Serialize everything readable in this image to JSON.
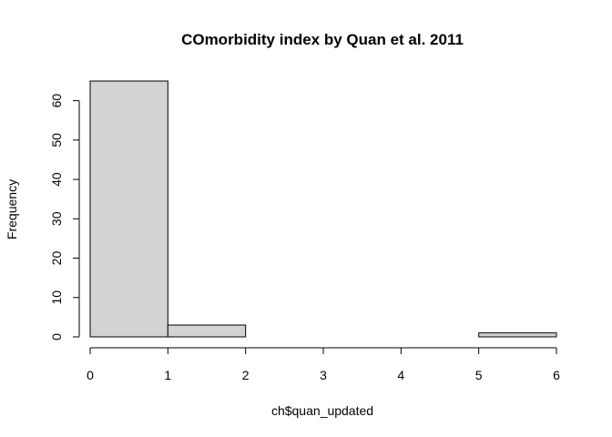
{
  "chart_data": {
    "type": "bar",
    "title": "COmorbidity index by Quan et al. 2011",
    "xlabel": "ch$quan_updated",
    "ylabel": "Frequency",
    "bins": [
      {
        "start": 0,
        "end": 1,
        "count": 65
      },
      {
        "start": 1,
        "end": 2,
        "count": 3
      },
      {
        "start": 2,
        "end": 3,
        "count": 0
      },
      {
        "start": 3,
        "end": 4,
        "count": 0
      },
      {
        "start": 4,
        "end": 5,
        "count": 0
      },
      {
        "start": 5,
        "end": 6,
        "count": 1
      }
    ],
    "xlim": [
      0,
      6
    ],
    "ylim": [
      0,
      65
    ],
    "x_ticks": [
      "0",
      "1",
      "2",
      "3",
      "4",
      "5",
      "6"
    ],
    "y_ticks": [
      "0",
      "10",
      "20",
      "30",
      "40",
      "50",
      "60"
    ],
    "bar_fill": "#d3d3d3",
    "bar_stroke": "#000000",
    "grid": false,
    "legend": "none"
  }
}
